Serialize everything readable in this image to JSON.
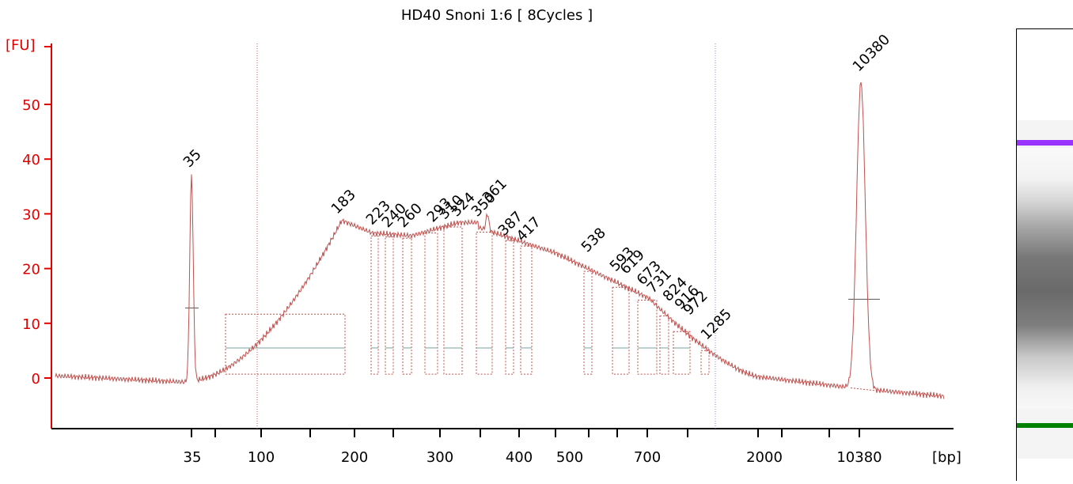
{
  "chart_data": {
    "type": "line",
    "title": "HD40 Snoni 1:6  [ 8Cycles ]",
    "ylabel": "[FU]",
    "xlabel": "[bp]",
    "ylim": [
      -9,
      62
    ],
    "yticks": [
      0,
      10,
      20,
      30,
      40,
      50
    ],
    "xtick_labels": [
      "35",
      "100",
      "200",
      "300",
      "400",
      "500",
      "700",
      "2000",
      "10380"
    ],
    "colors": {
      "trace": "#c0504d",
      "axis": "#e00000",
      "marker_lower": "#008000",
      "marker_upper": "#9933ff",
      "region_line": "#7aa0a0",
      "window_line": "#8888cc"
    },
    "markers": [
      {
        "label": "35",
        "peak": 37.5,
        "color": "#008000"
      },
      {
        "label": "10380",
        "peak": 55,
        "color": "#9933ff"
      }
    ],
    "peaks": [
      {
        "label": "183",
        "value": 29
      },
      {
        "label": "223",
        "value": 27
      },
      {
        "label": "240",
        "value": 26.5
      },
      {
        "label": "260",
        "value": 26.5
      },
      {
        "label": "293",
        "value": 27.5
      },
      {
        "label": "310",
        "value": 28
      },
      {
        "label": "324",
        "value": 28.5
      },
      {
        "label": "350",
        "value": 28.5
      },
      {
        "label": "361",
        "value": 31
      },
      {
        "label": "387",
        "value": 25
      },
      {
        "label": "417",
        "value": 24
      },
      {
        "label": "538",
        "value": 22
      },
      {
        "label": "593",
        "value": 18.5
      },
      {
        "label": "619",
        "value": 18
      },
      {
        "label": "673",
        "value": 16
      },
      {
        "label": "731",
        "value": 14.5
      },
      {
        "label": "824",
        "value": 13
      },
      {
        "label": "916",
        "value": 11.5
      },
      {
        "label": "972",
        "value": 10.5
      },
      {
        "label": "1285",
        "value": 6
      }
    ]
  }
}
